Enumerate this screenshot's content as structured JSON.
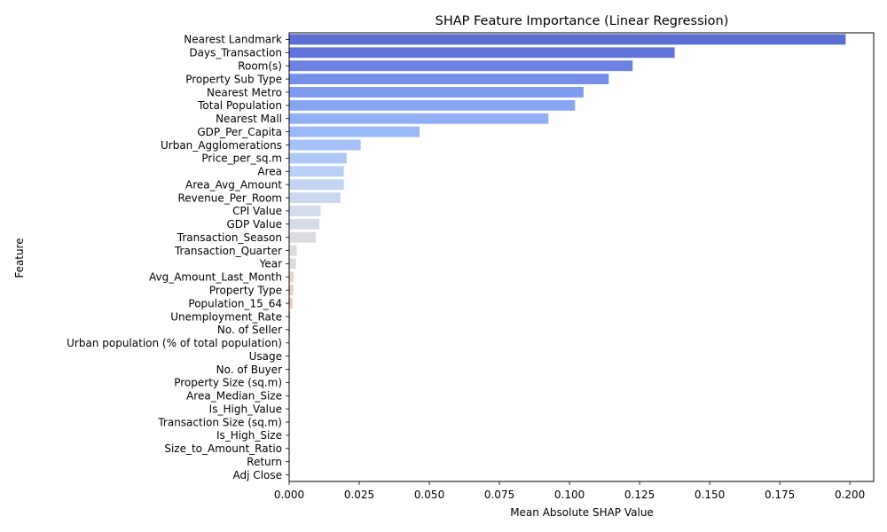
{
  "chart_data": {
    "type": "bar",
    "orientation": "horizontal",
    "title": "SHAP Feature Importance (Linear Regression)",
    "xlabel": "Mean Absolute SHAP Value",
    "ylabel": "Feature",
    "xlim": [
      0,
      0.2085
    ],
    "xticks": [
      "0.000",
      "0.025",
      "0.050",
      "0.075",
      "0.100",
      "0.125",
      "0.150",
      "0.175",
      "0.200"
    ],
    "grid": false,
    "categories": [
      "Nearest Landmark",
      "Days_Transaction",
      "Room(s)",
      "Property Sub Type",
      "Nearest Metro",
      "Total Population",
      "Nearest Mall",
      "GDP_Per_Capita",
      "Urban_Agglomerations",
      "Price_per_sq.m",
      "Area",
      "Area_Avg_Amount",
      "Revenue_Per_Room",
      "CPI Value",
      "GDP Value",
      "Transaction_Season",
      "Transaction_Quarter",
      "Year",
      "Avg_Amount_Last_Month",
      "Property Type",
      "Population_15_64",
      "Unemployment_Rate",
      "No. of Seller",
      "Urban population (% of total population)",
      "Usage",
      "No. of Buyer",
      "Property Size (sq.m)",
      "Area_Median_Size",
      "Is_High_Value",
      "Transaction Size (sq.m)",
      "Is_High_Size",
      "Size_to_Amount_Ratio",
      "Return",
      "Adj Close"
    ],
    "values": [
      0.1985,
      0.1375,
      0.1225,
      0.114,
      0.105,
      0.102,
      0.0925,
      0.0465,
      0.0255,
      0.0205,
      0.0195,
      0.0195,
      0.0183,
      0.0112,
      0.0108,
      0.0095,
      0.0027,
      0.0024,
      0.0016,
      0.0015,
      0.0012,
      0.0004,
      0.0003,
      0.0002,
      0.0002,
      0.0002,
      0.0001,
      0.0001,
      0.0001,
      0.0001,
      0.0001,
      0.0001,
      0.0001,
      0.0001
    ],
    "palette": "coolwarm",
    "colors": [
      "#5a6fd3",
      "#6073db",
      "#6b82e2",
      "#7490e8",
      "#7d9bee",
      "#87a6f2",
      "#90aff5",
      "#9bb8f8",
      "#a5c1f8",
      "#aec8f8",
      "#b8cff6",
      "#c1d4f4",
      "#c9d8f0",
      "#d1dbec",
      "#d6dce6",
      "#dadce0",
      "#dedcdb",
      "#e1dad6",
      "#e6d5cf",
      "#ead0c6",
      "#eccbbd",
      "#eec4b3",
      "#efbda9",
      "#efb59f",
      "#eeac95",
      "#eca38b",
      "#e99981",
      "#e58f77",
      "#e0846d",
      "#db7a63",
      "#d56f5a",
      "#ce6451",
      "#c85a49",
      "#c04f42"
    ]
  }
}
